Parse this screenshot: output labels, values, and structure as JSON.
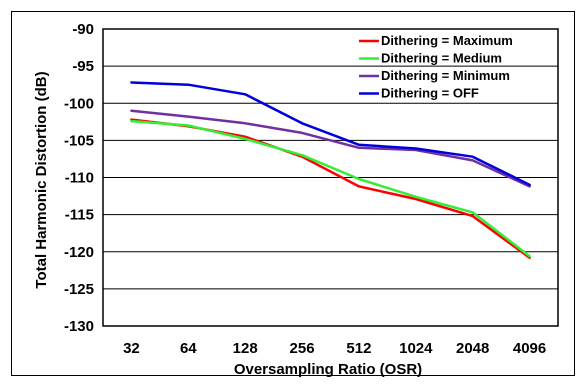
{
  "chart_data": {
    "type": "line",
    "title": "",
    "xlabel": "Oversampling Ratio (OSR)",
    "ylabel": "Total Harmonic Distortion (dB)",
    "categories": [
      "32",
      "64",
      "128",
      "256",
      "512",
      "1024",
      "2048",
      "4096"
    ],
    "ylim": [
      -130,
      -90
    ],
    "yticks": [
      -90,
      -95,
      -100,
      -105,
      -110,
      -115,
      -120,
      -125,
      -130
    ],
    "grid": true,
    "legend_position": "top-right",
    "series": [
      {
        "name": "Dithering = Maximum",
        "color": "#ff0000",
        "values": [
          -102.2,
          -103.1,
          -104.5,
          -107.2,
          -111.2,
          -112.9,
          -115.2,
          -120.8
        ]
      },
      {
        "name": "Dithering = Medium",
        "color": "#33ee33",
        "values": [
          -102.4,
          -103.0,
          -104.8,
          -107.0,
          -110.2,
          -112.6,
          -114.7,
          -120.6
        ]
      },
      {
        "name": "Dithering = Minimum",
        "color": "#7030a0",
        "values": [
          -101.0,
          -101.8,
          -102.7,
          -104.0,
          -106.0,
          -106.3,
          -107.7,
          -111.2
        ]
      },
      {
        "name": "Dithering = OFF",
        "color": "#0000dd",
        "values": [
          -97.2,
          -97.5,
          -98.8,
          -102.7,
          -105.6,
          -106.1,
          -107.2,
          -111.0
        ]
      }
    ]
  }
}
